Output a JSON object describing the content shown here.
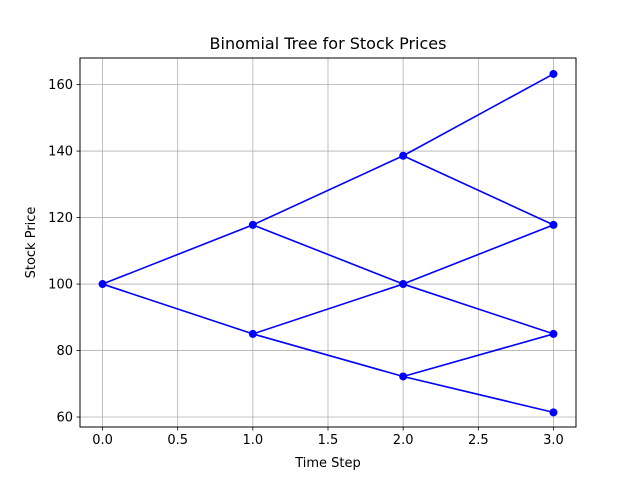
{
  "chart_data": {
    "type": "line",
    "title": "Binomial Tree for Stock Prices",
    "xlabel": "Time Step",
    "ylabel": "Stock Price",
    "xlim": [
      -0.15,
      3.15
    ],
    "ylim": [
      57,
      168
    ],
    "xticks": [
      0.0,
      0.5,
      1.0,
      1.5,
      2.0,
      2.5,
      3.0
    ],
    "xtick_labels": [
      "0.0",
      "0.5",
      "1.0",
      "1.5",
      "2.0",
      "2.5",
      "3.0"
    ],
    "yticks": [
      60,
      80,
      100,
      120,
      140,
      160
    ],
    "ytick_labels": [
      "60",
      "80",
      "100",
      "120",
      "140",
      "160"
    ],
    "grid": true,
    "color": "#0000ff",
    "nodes": [
      {
        "x": 0,
        "y": 100
      },
      {
        "x": 1,
        "y": 117.8
      },
      {
        "x": 1,
        "y": 85.0
      },
      {
        "x": 2,
        "y": 138.6
      },
      {
        "x": 2,
        "y": 100
      },
      {
        "x": 2,
        "y": 72.2
      },
      {
        "x": 3,
        "y": 163.2
      },
      {
        "x": 3,
        "y": 117.8
      },
      {
        "x": 3,
        "y": 85.0
      },
      {
        "x": 3,
        "y": 61.4
      }
    ],
    "edges": [
      [
        [
          0,
          100
        ],
        [
          1,
          117.8
        ]
      ],
      [
        [
          0,
          100
        ],
        [
          1,
          85.0
        ]
      ],
      [
        [
          1,
          117.8
        ],
        [
          2,
          138.6
        ]
      ],
      [
        [
          1,
          117.8
        ],
        [
          2,
          100
        ]
      ],
      [
        [
          1,
          85.0
        ],
        [
          2,
          100
        ]
      ],
      [
        [
          1,
          85.0
        ],
        [
          2,
          72.2
        ]
      ],
      [
        [
          2,
          138.6
        ],
        [
          3,
          163.2
        ]
      ],
      [
        [
          2,
          138.6
        ],
        [
          3,
          117.8
        ]
      ],
      [
        [
          2,
          100
        ],
        [
          3,
          117.8
        ]
      ],
      [
        [
          2,
          100
        ],
        [
          3,
          85.0
        ]
      ],
      [
        [
          2,
          72.2
        ],
        [
          3,
          85.0
        ]
      ],
      [
        [
          2,
          72.2
        ],
        [
          3,
          61.4
        ]
      ]
    ]
  }
}
